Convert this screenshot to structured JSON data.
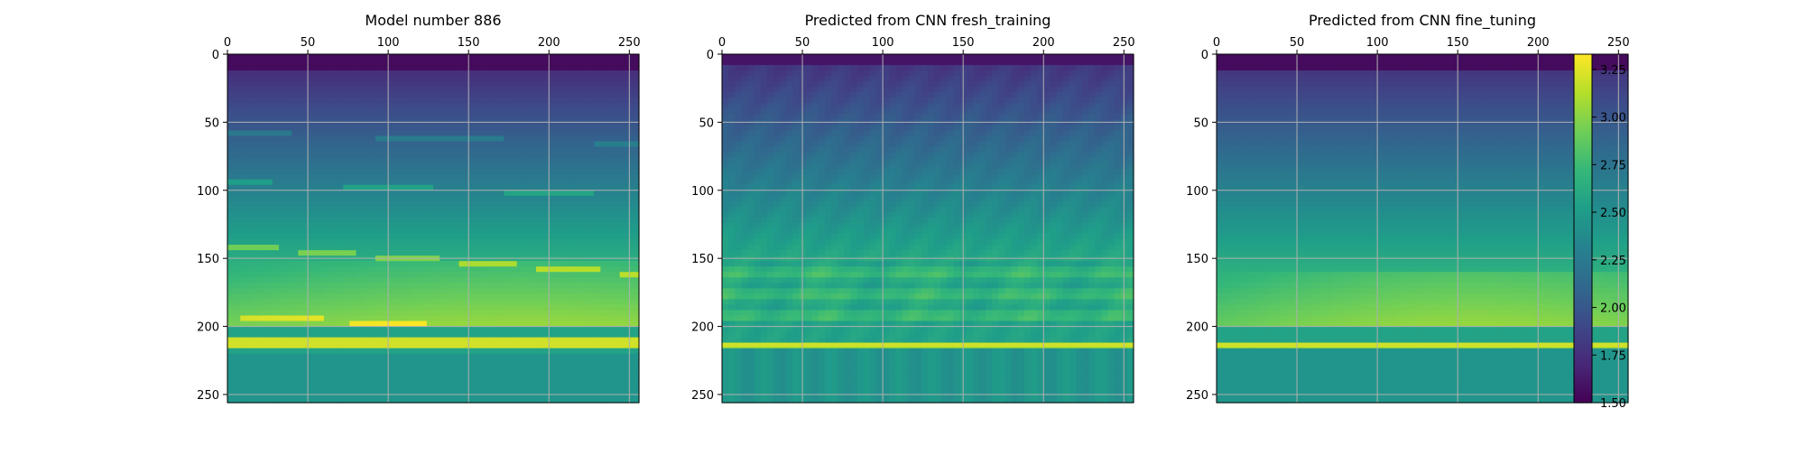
{
  "chart_data": [
    {
      "type": "heatmap",
      "title": "Model number 886",
      "xlim": [
        0,
        256
      ],
      "ylim": [
        256,
        0
      ],
      "xticks": [
        0,
        50,
        100,
        150,
        200,
        250
      ],
      "yticks": [
        0,
        50,
        100,
        150,
        200,
        250
      ],
      "x_axis_position": "top",
      "grid": true,
      "colormap": "viridis",
      "description_layers": {
        "top_low_band_rows": [
          0,
          14
        ],
        "gradient_low_to_high_rows": [
          14,
          200
        ],
        "bright_horizontal_line_row": 213,
        "lower_band_value": 2.5
      }
    },
    {
      "type": "heatmap",
      "title": "Predicted from CNN fresh_training",
      "xlim": [
        0,
        256
      ],
      "ylim": [
        256,
        0
      ],
      "xticks": [
        0,
        50,
        100,
        150,
        200,
        250
      ],
      "yticks": [
        0,
        50,
        100,
        150,
        200,
        250
      ],
      "x_axis_position": "top",
      "grid": true,
      "colormap": "viridis"
    },
    {
      "type": "heatmap",
      "title": "Predicted from CNN fine_tuning",
      "xlim": [
        0,
        256
      ],
      "ylim": [
        256,
        0
      ],
      "xticks": [
        0,
        50,
        100,
        150,
        200,
        250
      ],
      "yticks": [
        0,
        50,
        100,
        150,
        200,
        250
      ],
      "x_axis_position": "top",
      "grid": true,
      "colormap": "viridis"
    }
  ],
  "colorbar": {
    "range": [
      1.5,
      3.33
    ],
    "ticks": [
      "3.25",
      "3.00",
      "2.75",
      "2.50",
      "2.25",
      "2.00",
      "1.75",
      "1.50"
    ],
    "tick_values": [
      3.25,
      3.0,
      2.75,
      2.5,
      2.25,
      2.0,
      1.75,
      1.5
    ],
    "colormap": "viridis"
  },
  "colors": {
    "viridis_stops": [
      "#440154",
      "#482878",
      "#3e4989",
      "#31688e",
      "#26828e",
      "#1f9e89",
      "#35b779",
      "#6ece58",
      "#b5de2b",
      "#fde725"
    ],
    "grid": "#b0b0b0"
  }
}
